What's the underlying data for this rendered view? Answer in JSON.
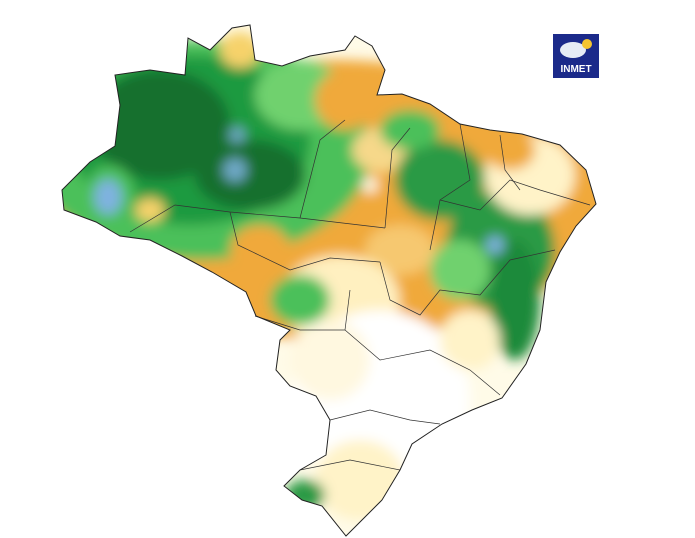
{
  "logo": {
    "label": "INMET"
  }
}
